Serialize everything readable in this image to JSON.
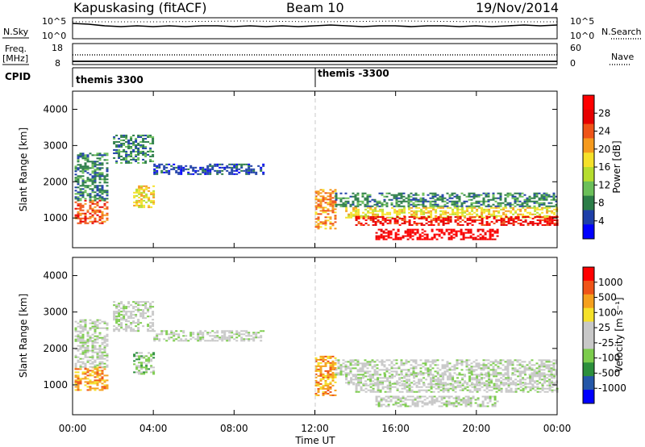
{
  "header": {
    "station": "Kapuskasing (fitACF)",
    "beam": "Beam 10",
    "date": "19/Nov/2014"
  },
  "side_labels": {
    "nsky": "N.Sky",
    "freq": "Freq.",
    "freq_unit": "[MHz]",
    "cpid": "CPID",
    "nsearch": "N.Search",
    "nave": "Nave"
  },
  "status_axes": {
    "noise_ticks": [
      "10^5",
      "10^0"
    ],
    "noise_right_ticks": [
      "10^5",
      "10^0"
    ],
    "freq_ticks": [
      "18",
      "8"
    ],
    "nave_ticks": [
      "60",
      "0"
    ]
  },
  "cpid_segments": [
    {
      "label": "themis 3300",
      "start_hour": 0
    },
    {
      "label": "themis -3300",
      "start_hour": 12
    }
  ],
  "chart_data": [
    {
      "type": "heatmap",
      "panel": "power",
      "ylabel": "Slant Range [km]",
      "yticks": [
        1000,
        2000,
        3000,
        4000
      ],
      "ylim": [
        180,
        4500
      ],
      "x_unit": "hours UT",
      "xlim": [
        0,
        24
      ],
      "colorbar_label": "Power [dB]",
      "colorbar_ticks": [
        "28",
        "24",
        "20",
        "16",
        "12",
        "8",
        "4"
      ],
      "colors": [
        "#0000ff",
        "#1e3fa8",
        "#2c7d48",
        "#6bbf59",
        "#b6dd2e",
        "#f5e12a",
        "#f59a1e",
        "#ef5418",
        "#e60000",
        "#ff0000"
      ],
      "echo_regions": [
        {
          "t0": 0.1,
          "t1": 1.7,
          "r0": 850,
          "r1": 1500,
          "level": 7
        },
        {
          "t0": 0.1,
          "t1": 1.7,
          "r0": 1500,
          "r1": 2800,
          "level": 2
        },
        {
          "t0": 2.0,
          "t1": 4.0,
          "r0": 2500,
          "r1": 3300,
          "level": 2
        },
        {
          "t0": 3.0,
          "t1": 4.0,
          "r0": 1300,
          "r1": 1900,
          "level": 5
        },
        {
          "t0": 4.0,
          "t1": 9.5,
          "r0": 2200,
          "r1": 2500,
          "level": 1
        },
        {
          "t0": 12.0,
          "t1": 13.0,
          "r0": 700,
          "r1": 1800,
          "level": 6
        },
        {
          "t0": 13.0,
          "t1": 24.0,
          "r0": 1300,
          "r1": 1700,
          "level": 2
        },
        {
          "t0": 13.5,
          "t1": 24.0,
          "r0": 1000,
          "r1": 1300,
          "level": 5
        },
        {
          "t0": 14.0,
          "t1": 24.0,
          "r0": 800,
          "r1": 1050,
          "level": 8
        },
        {
          "t0": 15.0,
          "t1": 21.0,
          "r0": 400,
          "r1": 700,
          "level": 9
        }
      ]
    },
    {
      "type": "heatmap",
      "panel": "velocity",
      "ylabel": "Slant Range [km]",
      "yticks": [
        1000,
        2000,
        3000,
        4000
      ],
      "ylim": [
        180,
        4500
      ],
      "x_unit": "hours UT",
      "xlim": [
        0,
        24
      ],
      "xlabel": "Time UT",
      "xticks": [
        "00:00",
        "04:00",
        "08:00",
        "12:00",
        "16:00",
        "20:00",
        "00:00"
      ],
      "colorbar_label": "Velocity [m s⁻¹]",
      "colorbar_ticks": [
        "1000",
        "500",
        "100",
        "25",
        "-25",
        "-100",
        "-500",
        "-1000"
      ],
      "colors": [
        "#0000ff",
        "#2457a8",
        "#2c8f3c",
        "#7ccc4c",
        "#c8c8c8",
        "#c8c8c8",
        "#f5e12a",
        "#f5a01e",
        "#ef5418",
        "#ff0000"
      ],
      "echo_regions": [
        {
          "t0": 0.1,
          "t1": 1.7,
          "r0": 850,
          "r1": 1500,
          "level": 7
        },
        {
          "t0": 0.1,
          "t1": 1.7,
          "r0": 1500,
          "r1": 2800,
          "level": 4
        },
        {
          "t0": 2.0,
          "t1": 4.0,
          "r0": 2500,
          "r1": 3300,
          "level": 4
        },
        {
          "t0": 3.0,
          "t1": 4.0,
          "r0": 1300,
          "r1": 1900,
          "level": 3
        },
        {
          "t0": 4.0,
          "t1": 9.5,
          "r0": 2200,
          "r1": 2500,
          "level": 4
        },
        {
          "t0": 12.0,
          "t1": 13.0,
          "r0": 700,
          "r1": 1800,
          "level": 7
        },
        {
          "t0": 13.0,
          "t1": 24.0,
          "r0": 1300,
          "r1": 1700,
          "level": 4
        },
        {
          "t0": 13.5,
          "t1": 24.0,
          "r0": 1000,
          "r1": 1300,
          "level": 4
        },
        {
          "t0": 14.0,
          "t1": 24.0,
          "r0": 800,
          "r1": 1050,
          "level": 4
        },
        {
          "t0": 15.0,
          "t1": 21.0,
          "r0": 400,
          "r1": 700,
          "level": 4
        }
      ]
    }
  ]
}
